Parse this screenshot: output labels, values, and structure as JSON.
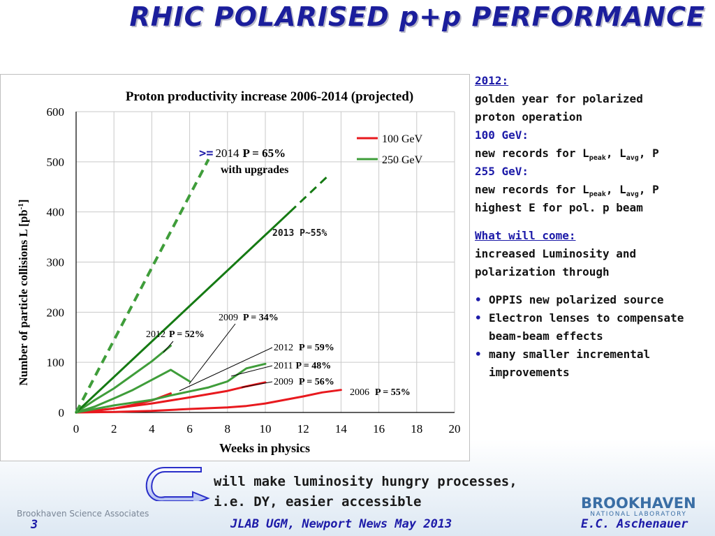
{
  "slide_title": "RHIC POLARISED p+p PERFORMANCE",
  "chart_data": {
    "type": "line",
    "title": "Proton productivity increase 2006-2014 (projected)",
    "xlabel": "Weeks in physics",
    "ylabel_main": "Number of particle collisions L [pb",
    "ylabel_sup": "-1",
    "ylabel_end": "]",
    "xlim": [
      0,
      20
    ],
    "ylim": [
      0,
      600
    ],
    "x_ticks": [
      0,
      2,
      4,
      6,
      8,
      10,
      12,
      14,
      16,
      18,
      20
    ],
    "y_ticks": [
      0,
      100,
      200,
      300,
      400,
      500,
      600
    ],
    "legend": [
      {
        "label": "100 GeV",
        "color": "#e8191e"
      },
      {
        "label": "250 GeV",
        "color": "#3f9d3a"
      }
    ],
    "series": [
      {
        "color": "#e8191e",
        "style": "solid",
        "width": 3,
        "points": [
          [
            0,
            0
          ],
          [
            2,
            1
          ],
          [
            4,
            3
          ],
          [
            6,
            7
          ],
          [
            8,
            10
          ],
          [
            9,
            13
          ],
          [
            10,
            18
          ],
          [
            12,
            32
          ],
          [
            13,
            40
          ],
          [
            14,
            45
          ]
        ]
      },
      {
        "color": "#e8191e",
        "style": "solid",
        "width": 3,
        "points": [
          [
            0,
            0
          ],
          [
            1,
            3
          ],
          [
            2,
            8
          ],
          [
            3,
            15
          ],
          [
            4,
            24
          ],
          [
            5,
            38
          ]
        ]
      },
      {
        "color": "#e8191e",
        "style": "solid",
        "width": 3,
        "points": [
          [
            0,
            0
          ],
          [
            2,
            8
          ],
          [
            4,
            18
          ],
          [
            6,
            30
          ],
          [
            8,
            43
          ],
          [
            9,
            52
          ],
          [
            10,
            60
          ]
        ]
      },
      {
        "color": "#3f9d3a",
        "style": "solid",
        "width": 3,
        "points": [
          [
            0,
            0
          ],
          [
            2,
            14
          ],
          [
            4,
            25
          ],
          [
            5,
            34
          ],
          [
            6,
            42
          ],
          [
            7,
            50
          ],
          [
            8,
            62
          ],
          [
            9,
            88
          ],
          [
            10,
            97
          ]
        ]
      },
      {
        "color": "#3f9d3a",
        "style": "solid",
        "width": 3,
        "points": [
          [
            0,
            0
          ],
          [
            1,
            12
          ],
          [
            2,
            28
          ],
          [
            3,
            45
          ],
          [
            4,
            65
          ],
          [
            5,
            85
          ],
          [
            6,
            62
          ]
        ]
      },
      {
        "color": "#3f9d3a",
        "style": "solid",
        "width": 3,
        "points": [
          [
            0,
            0
          ],
          [
            1,
            25
          ],
          [
            2,
            48
          ],
          [
            3,
            75
          ],
          [
            4,
            102
          ],
          [
            5,
            133
          ]
        ]
      },
      {
        "color": "#157a13",
        "style": "solid",
        "width": 3,
        "points": [
          [
            0,
            0
          ],
          [
            11.3,
            400
          ]
        ]
      },
      {
        "color": "#157a13",
        "style": "dashed",
        "width": 3,
        "points": [
          [
            11.3,
            400
          ],
          [
            13.4,
            475
          ]
        ]
      },
      {
        "color": "#3f9d3a",
        "style": "dashed",
        "width": 4,
        "points": [
          [
            0,
            0
          ],
          [
            7,
            505
          ]
        ]
      }
    ],
    "annotations": {
      "a2014": {
        "prefix": ">=",
        "year": "2014",
        "bold": "P = 65%",
        "line2": "with upgrades"
      },
      "a2013": "2013 P~55%",
      "a2009_34": {
        "year": "2009",
        "bold": "P = 34%"
      },
      "a2012_52": {
        "year": "2012",
        "bold": "P = 52%"
      },
      "a2012_59": {
        "year": "2012",
        "bold": "P = 59%"
      },
      "a2011_48": {
        "year": "2011",
        "bold": "P = 48%"
      },
      "a2009_56": {
        "year": "2009",
        "bold": "P = 56%"
      },
      "a2006_55": {
        "year": "2006",
        "bold": "P = 55%"
      }
    }
  },
  "side": {
    "y2012_heading": "2012:",
    "golden_line1": "golden year for polarized",
    "golden_line2": "proton operation",
    "gev100_heading": "100 GeV:",
    "records_prefix": "new records for L",
    "sub_peak": "peak",
    "sep": ", L",
    "sub_avg": "avg",
    "records_suffix": ", P",
    "gev255_heading": "255 GeV:",
    "highest": "highest E for pol. p beam",
    "future_heading": "What will come:",
    "future_line1": "increased Luminosity and",
    "future_line2": "polarization through",
    "bullets": [
      "OPPIS new polarized source",
      "Electron lenses to compensate beam-beam effects",
      "many smaller incremental improvements"
    ],
    "bullet_mark": "•"
  },
  "bottom_line1": "will make luminosity hungry processes,",
  "bottom_line2": "i.e. DY, easier accessible",
  "footer": {
    "org": "Brookhaven Science Associates",
    "page": "3",
    "event": "JLAB UGM, Newport News May 2013",
    "logo_big": "BROOKHAVEN",
    "logo_small": "NATIONAL LABORATORY",
    "author": "E.C. Aschenauer"
  },
  "colors": {
    "title_blue": "#1b1e9c",
    "accent_blue": "#1c1aa8",
    "red": "#e8191e",
    "green": "#3f9d3a",
    "dark_green": "#157a13"
  }
}
